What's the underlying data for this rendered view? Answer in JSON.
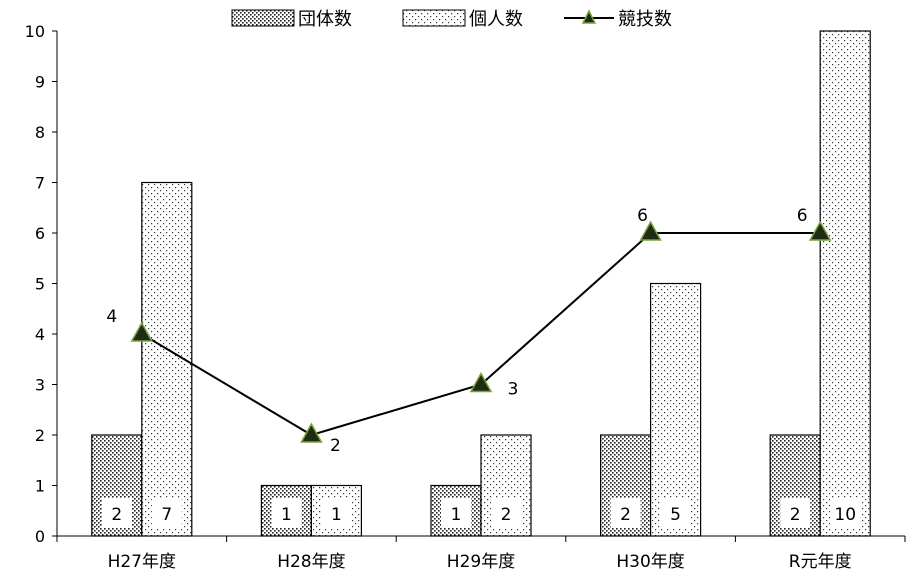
{
  "chart_data": {
    "type": "bar",
    "categories": [
      "H27年度",
      "H28年度",
      "H29年度",
      "H30年度",
      "R元年度"
    ],
    "series": [
      {
        "name": "団体数",
        "type": "bar",
        "values": [
          2,
          1,
          1,
          2,
          2
        ]
      },
      {
        "name": "個人数",
        "type": "bar",
        "values": [
          7,
          1,
          2,
          5,
          10
        ]
      },
      {
        "name": "競技数",
        "type": "line",
        "marker": "triangle",
        "values": [
          4,
          2,
          3,
          6,
          6
        ]
      }
    ],
    "title": "",
    "xlabel": "",
    "ylabel": "",
    "ylim": [
      0,
      10
    ],
    "yticks": [
      0,
      1,
      2,
      3,
      4,
      5,
      6,
      7,
      8,
      9,
      10
    ],
    "grid": false,
    "legend_position": "top",
    "colors": {
      "line": "#000000",
      "marker_fill": "#1f2d12",
      "marker_edge": "#7aa23f",
      "bar_edge": "#000000"
    }
  }
}
